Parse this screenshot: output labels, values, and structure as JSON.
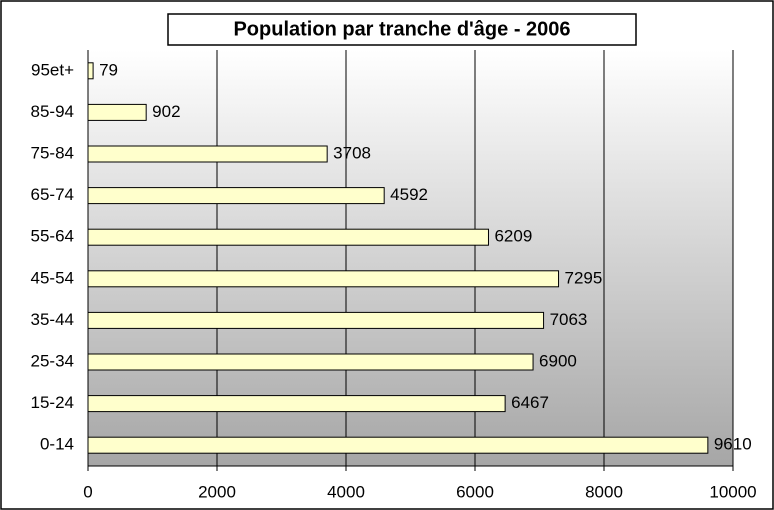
{
  "chart_data": {
    "type": "hbar",
    "title": "Population par tranche d'âge - 2006",
    "categories": [
      "95et+",
      "85-94",
      "75-84",
      "65-74",
      "55-64",
      "45-54",
      "35-44",
      "25-34",
      "15-24",
      "0-14"
    ],
    "values": [
      79,
      902,
      3708,
      4592,
      6209,
      7295,
      7063,
      6900,
      6467,
      9610
    ],
    "color": "#ffffcc",
    "xlim": [
      0,
      10000
    ],
    "xticks": [
      0,
      2000,
      4000,
      6000,
      8000,
      10000
    ],
    "grid": true
  }
}
